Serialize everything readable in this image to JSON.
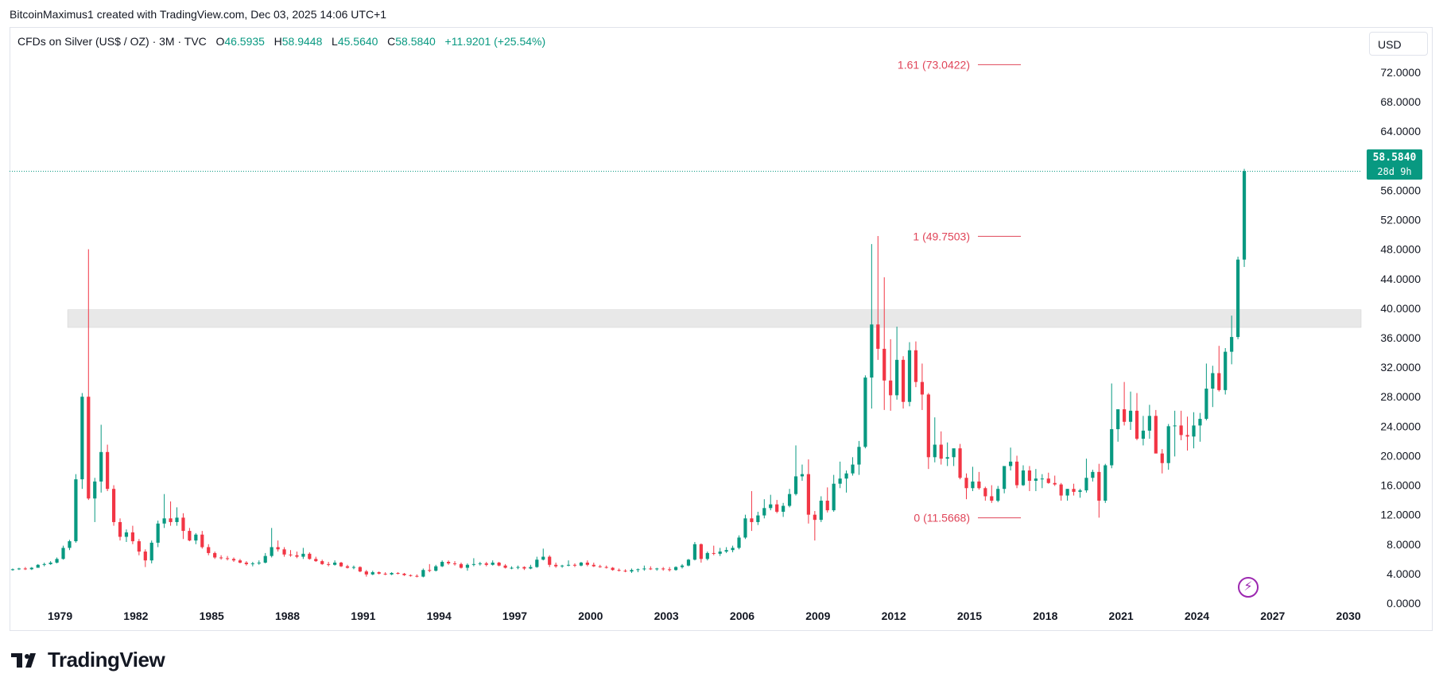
{
  "attribution": "BitcoinMaximus1 created with TradingView.com, Dec 03, 2025 14:06 UTC+1",
  "legend": {
    "symbol": "CFDs on Silver (US$ / OZ) · 3M · TVC",
    "open_label": "O",
    "open": "46.5935",
    "high_label": "H",
    "high": "58.9448",
    "low_label": "L",
    "low": "45.5640",
    "close_label": "C",
    "close": "58.5840",
    "change": "+11.9201 (+25.54%)"
  },
  "currency": "USD",
  "price_badge": {
    "price": "58.5840",
    "countdown": "28d 9h"
  },
  "logo_text": "TradingView",
  "colors": {
    "up": "#089981",
    "down": "#f23645",
    "fib": "#e04458",
    "zone": "#d9d9d9",
    "grid": "#f0f3fa"
  },
  "chart_data": {
    "type": "candlestick",
    "x_axis": {
      "ticks": [
        "1979",
        "1982",
        "1985",
        "1988",
        "1991",
        "1994",
        "1997",
        "2000",
        "2003",
        "2006",
        "2009",
        "2012",
        "2015",
        "2018",
        "2021",
        "2024",
        "2027",
        "2030"
      ],
      "range": [
        1977.0,
        2030.5
      ]
    },
    "y_axis": {
      "ticks": [
        "72.0000",
        "68.0000",
        "64.0000",
        "60.0000",
        "56.0000",
        "52.0000",
        "48.0000",
        "44.0000",
        "40.0000",
        "36.0000",
        "32.0000",
        "28.0000",
        "24.0000",
        "20.0000",
        "16.0000",
        "12.0000",
        "8.0000",
        "4.0000",
        "0.0000"
      ],
      "range": [
        0,
        72
      ]
    },
    "last_price": 58.584,
    "fib_levels": [
      {
        "label": "1.61 (73.0422)",
        "value": 73.0422
      },
      {
        "label": "1 (49.7503)",
        "value": 49.7503
      },
      {
        "label": "0 (11.5668)",
        "value": 11.5668
      }
    ],
    "zone": {
      "from_year": 1979.3,
      "low": 37.4,
      "high": 39.8
    },
    "candles": [
      [
        1977.0,
        4.5,
        4.7,
        4.4,
        4.6
      ],
      [
        1977.25,
        4.6,
        4.8,
        4.5,
        4.7
      ],
      [
        1977.5,
        4.7,
        4.9,
        4.5,
        4.6
      ],
      [
        1977.75,
        4.6,
        4.9,
        4.5,
        4.8
      ],
      [
        1978.0,
        4.8,
        5.3,
        4.8,
        5.2
      ],
      [
        1978.25,
        5.2,
        5.5,
        5.0,
        5.3
      ],
      [
        1978.5,
        5.3,
        5.7,
        5.2,
        5.5
      ],
      [
        1978.75,
        5.5,
        6.2,
        5.4,
        6.0
      ],
      [
        1979.0,
        6.0,
        7.8,
        5.9,
        7.5
      ],
      [
        1979.25,
        7.5,
        8.6,
        7.2,
        8.4
      ],
      [
        1979.5,
        8.4,
        17.5,
        8.2,
        16.8
      ],
      [
        1979.75,
        16.8,
        28.5,
        15.5,
        28.0
      ],
      [
        1980.0,
        28.0,
        48.0,
        14.0,
        14.2
      ],
      [
        1980.25,
        14.2,
        17.0,
        11.0,
        16.5
      ],
      [
        1980.5,
        16.5,
        24.2,
        15.0,
        20.5
      ],
      [
        1980.75,
        20.5,
        21.5,
        15.2,
        15.5
      ],
      [
        1981.0,
        15.5,
        16.0,
        10.5,
        11.0
      ],
      [
        1981.25,
        11.0,
        11.5,
        8.5,
        9.0
      ],
      [
        1981.5,
        9.0,
        10.0,
        8.3,
        9.6
      ],
      [
        1981.75,
        9.6,
        10.5,
        8.0,
        8.4
      ],
      [
        1982.0,
        8.4,
        8.7,
        6.5,
        7.0
      ],
      [
        1982.25,
        7.0,
        7.3,
        4.9,
        5.8
      ],
      [
        1982.5,
        5.8,
        8.5,
        5.4,
        8.2
      ],
      [
        1982.75,
        8.2,
        11.2,
        7.6,
        10.8
      ],
      [
        1983.0,
        10.8,
        14.8,
        10.2,
        11.5
      ],
      [
        1983.25,
        11.5,
        13.8,
        10.5,
        11.0
      ],
      [
        1983.5,
        11.0,
        13.0,
        10.5,
        11.6
      ],
      [
        1983.75,
        11.6,
        12.2,
        8.7,
        9.8
      ],
      [
        1984.0,
        9.8,
        10.2,
        8.4,
        8.5
      ],
      [
        1984.25,
        8.5,
        9.5,
        8.0,
        9.3
      ],
      [
        1984.5,
        9.3,
        9.8,
        7.4,
        7.6
      ],
      [
        1984.75,
        7.6,
        8.0,
        6.5,
        6.8
      ],
      [
        1985.0,
        6.8,
        7.0,
        6.0,
        6.2
      ],
      [
        1985.25,
        6.2,
        6.5,
        5.9,
        6.1
      ],
      [
        1985.5,
        6.1,
        6.4,
        5.8,
        6.0
      ],
      [
        1985.75,
        6.0,
        6.2,
        5.6,
        5.8
      ],
      [
        1986.0,
        5.8,
        6.0,
        5.4,
        5.5
      ],
      [
        1986.25,
        5.5,
        5.7,
        5.1,
        5.3
      ],
      [
        1986.5,
        5.3,
        5.6,
        5.0,
        5.4
      ],
      [
        1986.75,
        5.4,
        5.8,
        5.2,
        5.5
      ],
      [
        1987.0,
        5.5,
        6.8,
        5.4,
        6.4
      ],
      [
        1987.25,
        6.4,
        10.2,
        6.2,
        7.6
      ],
      [
        1987.5,
        7.6,
        8.5,
        7.0,
        7.3
      ],
      [
        1987.75,
        7.3,
        7.6,
        6.3,
        6.6
      ],
      [
        1988.0,
        6.6,
        7.2,
        6.3,
        6.5
      ],
      [
        1988.25,
        6.5,
        7.0,
        6.1,
        6.3
      ],
      [
        1988.5,
        6.3,
        7.5,
        6.0,
        6.7
      ],
      [
        1988.75,
        6.7,
        6.9,
        5.9,
        6.0
      ],
      [
        1989.0,
        6.0,
        6.3,
        5.6,
        5.7
      ],
      [
        1989.25,
        5.7,
        5.9,
        5.2,
        5.3
      ],
      [
        1989.5,
        5.3,
        5.6,
        5.0,
        5.2
      ],
      [
        1989.75,
        5.2,
        5.8,
        5.1,
        5.5
      ],
      [
        1990.0,
        5.5,
        5.6,
        4.9,
        5.0
      ],
      [
        1990.25,
        5.0,
        5.2,
        4.7,
        4.8
      ],
      [
        1990.5,
        4.8,
        5.1,
        4.6,
        4.9
      ],
      [
        1990.75,
        4.9,
        5.0,
        4.2,
        4.3
      ],
      [
        1991.0,
        4.3,
        4.5,
        3.6,
        3.9
      ],
      [
        1991.25,
        3.9,
        4.4,
        3.8,
        4.2
      ],
      [
        1991.5,
        4.2,
        4.3,
        3.9,
        4.0
      ],
      [
        1991.75,
        4.0,
        4.2,
        3.8,
        3.9
      ],
      [
        1992.0,
        3.9,
        4.2,
        3.8,
        4.1
      ],
      [
        1992.25,
        4.1,
        4.2,
        3.9,
        4.0
      ],
      [
        1992.5,
        4.0,
        4.1,
        3.7,
        3.8
      ],
      [
        1992.75,
        3.8,
        3.9,
        3.6,
        3.7
      ],
      [
        1993.0,
        3.7,
        3.9,
        3.5,
        3.6
      ],
      [
        1993.25,
        3.6,
        4.7,
        3.5,
        4.5
      ],
      [
        1993.5,
        4.5,
        5.3,
        4.2,
        4.4
      ],
      [
        1993.75,
        4.4,
        5.2,
        4.3,
        5.0
      ],
      [
        1994.0,
        5.0,
        5.8,
        4.9,
        5.6
      ],
      [
        1994.25,
        5.6,
        5.8,
        5.2,
        5.4
      ],
      [
        1994.5,
        5.4,
        5.7,
        5.1,
        5.3
      ],
      [
        1994.75,
        5.3,
        5.5,
        4.7,
        4.8
      ],
      [
        1995.0,
        4.8,
        5.4,
        4.4,
        5.2
      ],
      [
        1995.25,
        5.2,
        6.1,
        5.0,
        5.3
      ],
      [
        1995.5,
        5.3,
        5.6,
        5.1,
        5.4
      ],
      [
        1995.75,
        5.4,
        5.6,
        5.0,
        5.2
      ],
      [
        1996.0,
        5.2,
        5.8,
        5.1,
        5.5
      ],
      [
        1996.25,
        5.5,
        5.6,
        5.0,
        5.1
      ],
      [
        1996.5,
        5.1,
        5.3,
        4.7,
        4.8
      ],
      [
        1996.75,
        4.8,
        5.0,
        4.6,
        4.8
      ],
      [
        1997.0,
        4.8,
        5.1,
        4.6,
        4.9
      ],
      [
        1997.25,
        4.9,
        5.0,
        4.5,
        4.7
      ],
      [
        1997.5,
        4.7,
        5.2,
        4.6,
        4.9
      ],
      [
        1997.75,
        4.9,
        6.3,
        4.8,
        5.9
      ],
      [
        1998.0,
        5.9,
        7.4,
        5.8,
        6.3
      ],
      [
        1998.25,
        6.3,
        6.5,
        4.9,
        5.2
      ],
      [
        1998.5,
        5.2,
        5.5,
        4.8,
        5.0
      ],
      [
        1998.75,
        5.0,
        5.2,
        4.8,
        5.1
      ],
      [
        1999.0,
        5.1,
        5.8,
        5.0,
        5.2
      ],
      [
        1999.25,
        5.2,
        5.4,
        4.9,
        5.1
      ],
      [
        1999.5,
        5.1,
        5.6,
        5.0,
        5.5
      ],
      [
        1999.75,
        5.5,
        5.8,
        5.0,
        5.2
      ],
      [
        2000.0,
        5.2,
        5.5,
        4.9,
        5.0
      ],
      [
        2000.25,
        5.0,
        5.2,
        4.8,
        4.9
      ],
      [
        2000.5,
        4.9,
        5.1,
        4.7,
        4.8
      ],
      [
        2000.75,
        4.8,
        4.9,
        4.4,
        4.5
      ],
      [
        2001.0,
        4.5,
        4.7,
        4.3,
        4.4
      ],
      [
        2001.25,
        4.4,
        4.6,
        4.2,
        4.3
      ],
      [
        2001.5,
        4.3,
        4.7,
        4.1,
        4.5
      ],
      [
        2001.75,
        4.5,
        4.7,
        4.2,
        4.6
      ],
      [
        2002.0,
        4.6,
        5.1,
        4.4,
        4.7
      ],
      [
        2002.25,
        4.7,
        5.0,
        4.5,
        4.6
      ],
      [
        2002.5,
        4.6,
        4.8,
        4.4,
        4.7
      ],
      [
        2002.75,
        4.7,
        4.9,
        4.4,
        4.6
      ],
      [
        2003.0,
        4.6,
        4.9,
        4.3,
        4.5
      ],
      [
        2003.25,
        4.5,
        5.0,
        4.4,
        4.9
      ],
      [
        2003.5,
        4.9,
        5.3,
        4.7,
        5.1
      ],
      [
        2003.75,
        5.1,
        6.0,
        5.0,
        5.9
      ],
      [
        2004.0,
        5.9,
        8.3,
        5.8,
        8.0
      ],
      [
        2004.25,
        8.0,
        8.1,
        5.5,
        6.0
      ],
      [
        2004.5,
        6.0,
        7.0,
        5.8,
        6.8
      ],
      [
        2004.75,
        6.8,
        7.8,
        6.5,
        6.7
      ],
      [
        2005.0,
        6.7,
        7.5,
        6.4,
        7.0
      ],
      [
        2005.25,
        7.0,
        7.6,
        6.8,
        7.2
      ],
      [
        2005.5,
        7.2,
        7.8,
        6.9,
        7.5
      ],
      [
        2005.75,
        7.5,
        9.2,
        7.3,
        8.9
      ],
      [
        2006.0,
        8.9,
        12.0,
        8.7,
        11.5
      ],
      [
        2006.25,
        11.5,
        15.2,
        9.8,
        11.0
      ],
      [
        2006.5,
        11.0,
        12.4,
        10.6,
        11.9
      ],
      [
        2006.75,
        11.9,
        14.1,
        11.5,
        12.9
      ],
      [
        2007.0,
        12.9,
        14.7,
        12.6,
        13.4
      ],
      [
        2007.25,
        13.4,
        14.0,
        12.2,
        12.4
      ],
      [
        2007.5,
        12.4,
        13.6,
        11.7,
        13.2
      ],
      [
        2007.75,
        13.2,
        15.5,
        13.0,
        14.8
      ],
      [
        2008.0,
        14.8,
        21.4,
        14.6,
        17.2
      ],
      [
        2008.25,
        17.2,
        18.8,
        16.6,
        17.5
      ],
      [
        2008.5,
        17.5,
        19.5,
        10.8,
        12.0
      ],
      [
        2008.75,
        12.0,
        12.5,
        8.5,
        11.3
      ],
      [
        2009.0,
        11.3,
        14.5,
        11.0,
        13.9
      ],
      [
        2009.25,
        13.9,
        15.7,
        12.3,
        12.6
      ],
      [
        2009.5,
        12.6,
        17.4,
        12.4,
        16.2
      ],
      [
        2009.75,
        16.2,
        19.2,
        15.6,
        16.9
      ],
      [
        2010.0,
        16.9,
        18.0,
        15.0,
        17.6
      ],
      [
        2010.25,
        17.6,
        19.8,
        17.3,
        18.8
      ],
      [
        2010.5,
        18.8,
        22.0,
        17.4,
        21.2
      ],
      [
        2010.75,
        21.2,
        30.9,
        21.0,
        30.6
      ],
      [
        2011.0,
        30.6,
        48.7,
        26.4,
        37.8
      ],
      [
        2011.25,
        37.8,
        49.8,
        33.0,
        34.5
      ],
      [
        2011.5,
        34.5,
        44.2,
        26.2,
        30.2
      ],
      [
        2011.75,
        30.2,
        35.8,
        26.1,
        28.2
      ],
      [
        2012.0,
        28.2,
        37.5,
        27.6,
        33.0
      ],
      [
        2012.25,
        33.0,
        33.5,
        26.4,
        27.3
      ],
      [
        2012.5,
        27.3,
        35.4,
        26.7,
        34.3
      ],
      [
        2012.75,
        34.3,
        35.5,
        29.3,
        30.0
      ],
      [
        2013.0,
        30.0,
        32.5,
        26.2,
        28.3
      ],
      [
        2013.25,
        28.3,
        28.5,
        18.2,
        19.8
      ],
      [
        2013.5,
        19.8,
        25.2,
        19.1,
        21.5
      ],
      [
        2013.75,
        21.5,
        23.3,
        18.8,
        19.6
      ],
      [
        2014.0,
        19.6,
        21.8,
        18.6,
        19.8
      ],
      [
        2014.25,
        19.8,
        20.9,
        18.6,
        21.0
      ],
      [
        2014.5,
        21.0,
        21.6,
        16.8,
        17.0
      ],
      [
        2014.75,
        17.0,
        17.6,
        14.1,
        15.6
      ],
      [
        2015.0,
        15.6,
        18.5,
        15.2,
        16.5
      ],
      [
        2015.25,
        16.5,
        17.8,
        15.4,
        15.6
      ],
      [
        2015.5,
        15.6,
        15.8,
        13.9,
        14.5
      ],
      [
        2015.75,
        14.5,
        16.0,
        13.6,
        13.9
      ],
      [
        2016.0,
        13.9,
        15.9,
        13.7,
        15.5
      ],
      [
        2016.25,
        15.5,
        18.3,
        14.9,
        18.6
      ],
      [
        2016.5,
        18.6,
        21.1,
        18.0,
        19.2
      ],
      [
        2016.75,
        19.2,
        20.0,
        15.6,
        16.0
      ],
      [
        2017.0,
        16.0,
        18.7,
        15.9,
        18.0
      ],
      [
        2017.25,
        18.0,
        18.6,
        15.2,
        16.6
      ],
      [
        2017.5,
        16.6,
        18.2,
        15.2,
        16.9
      ],
      [
        2017.75,
        16.9,
        17.5,
        15.6,
        16.9
      ],
      [
        2018.0,
        16.9,
        17.7,
        16.2,
        16.3
      ],
      [
        2018.25,
        16.3,
        17.3,
        15.9,
        16.1
      ],
      [
        2018.5,
        16.1,
        16.3,
        13.9,
        14.6
      ],
      [
        2018.75,
        14.6,
        15.5,
        13.9,
        15.5
      ],
      [
        2019.0,
        15.5,
        16.2,
        14.6,
        15.1
      ],
      [
        2019.25,
        15.1,
        15.5,
        14.3,
        15.3
      ],
      [
        2019.5,
        15.3,
        19.6,
        15.0,
        17.0
      ],
      [
        2019.75,
        17.0,
        18.1,
        16.5,
        17.8
      ],
      [
        2020.0,
        17.8,
        18.9,
        11.6,
        13.9
      ],
      [
        2020.25,
        13.9,
        18.9,
        13.6,
        18.7
      ],
      [
        2020.5,
        18.7,
        29.8,
        18.3,
        23.6
      ],
      [
        2020.75,
        23.6,
        26.0,
        21.9,
        26.3
      ],
      [
        2021.0,
        26.3,
        30.0,
        24.1,
        24.6
      ],
      [
        2021.25,
        24.6,
        28.7,
        23.5,
        26.1
      ],
      [
        2021.5,
        26.1,
        28.5,
        22.1,
        22.3
      ],
      [
        2021.75,
        22.3,
        25.4,
        21.4,
        23.4
      ],
      [
        2022.0,
        23.4,
        26.9,
        22.3,
        25.4
      ],
      [
        2022.25,
        25.4,
        26.2,
        20.5,
        20.3
      ],
      [
        2022.5,
        20.3,
        20.9,
        17.6,
        19.0
      ],
      [
        2022.75,
        19.0,
        24.3,
        18.1,
        24.0
      ],
      [
        2023.0,
        24.0,
        26.1,
        19.9,
        24.1
      ],
      [
        2023.25,
        24.1,
        26.1,
        22.1,
        22.8
      ],
      [
        2023.5,
        22.8,
        25.3,
        20.7,
        22.6
      ],
      [
        2023.75,
        22.6,
        25.9,
        21.0,
        24.1
      ],
      [
        2024.0,
        24.1,
        25.8,
        21.9,
        25.0
      ],
      [
        2024.25,
        25.0,
        32.5,
        24.8,
        29.1
      ],
      [
        2024.5,
        29.1,
        32.2,
        26.6,
        31.2
      ],
      [
        2024.75,
        31.2,
        34.9,
        28.7,
        28.9
      ],
      [
        2025.0,
        28.9,
        34.6,
        28.3,
        34.1
      ],
      [
        2025.25,
        34.1,
        39.0,
        32.4,
        36.1
      ],
      [
        2025.5,
        36.1,
        47.0,
        35.8,
        46.6
      ],
      [
        2025.75,
        46.6,
        58.9,
        45.6,
        58.6
      ]
    ]
  }
}
